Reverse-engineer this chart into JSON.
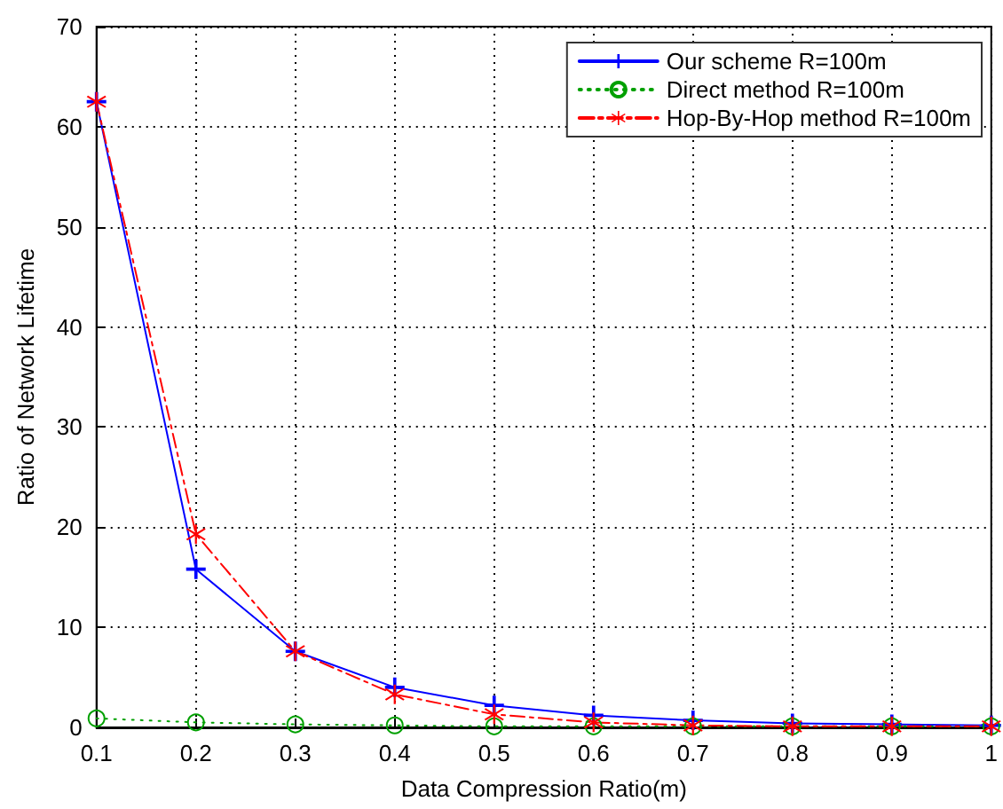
{
  "chart_data": {
    "type": "line",
    "xlabel": "Data Compression Ratio(m)",
    "ylabel": "Ratio of Network Lifetime",
    "x": [
      0.1,
      0.2,
      0.3,
      0.4,
      0.5,
      0.6,
      0.7,
      0.8,
      0.9,
      1
    ],
    "series": [
      {
        "name": "Our scheme R=100m",
        "color": "#0000ff",
        "marker": "cross",
        "line_style": "solid",
        "values": [
          62.5,
          15.8,
          7.6,
          4.0,
          2.2,
          1.2,
          0.7,
          0.4,
          0.3,
          0.2
        ]
      },
      {
        "name": "Direct method R=100m",
        "color": "#00a000",
        "marker": "circle",
        "line_style": "dotted",
        "values": [
          0.9,
          0.5,
          0.3,
          0.2,
          0.1,
          0.1,
          0.1,
          0.1,
          0.1,
          0.1
        ]
      },
      {
        "name": "Hop-By-Hop method R=100m",
        "color": "#ff0000",
        "marker": "star",
        "line_style": "dashed",
        "values": [
          62.5,
          19.3,
          7.6,
          3.3,
          1.3,
          0.5,
          0.2,
          0.1,
          0.1,
          0.1
        ]
      }
    ],
    "xlim": [
      0.1,
      1
    ],
    "xticks": [
      0.1,
      0.2,
      0.3,
      0.4,
      0.5,
      0.6,
      0.7,
      0.8,
      0.9,
      1
    ],
    "ylim": [
      0,
      70
    ],
    "yticks": [
      0,
      10,
      20,
      30,
      40,
      50,
      60,
      70
    ],
    "grid": true,
    "legend": "top right"
  }
}
